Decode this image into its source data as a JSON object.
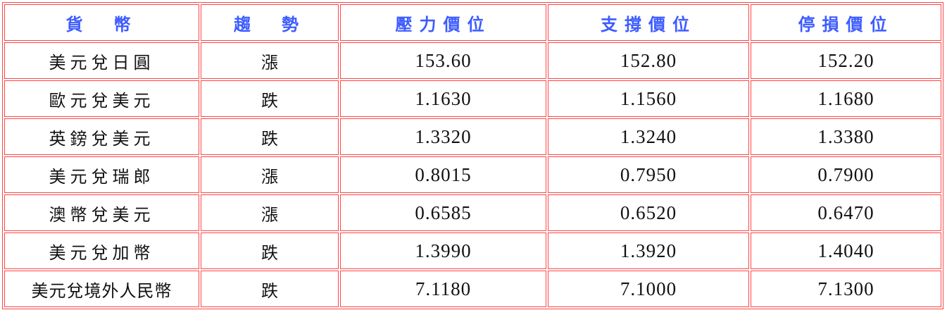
{
  "colors": {
    "border": "#ff4444",
    "header_text": "#3d5cff"
  },
  "headers": [
    "貨　幣",
    "趨　勢",
    "壓力價位",
    "支撐價位",
    "停損價位"
  ],
  "rows": [
    {
      "pair": "美元兌日圓",
      "trend": "漲",
      "resistance": "153.60",
      "support": "152.80",
      "stop": "152.20"
    },
    {
      "pair": "歐元兌美元",
      "trend": "跌",
      "resistance": "1.1630",
      "support": "1.1560",
      "stop": "1.1680"
    },
    {
      "pair": "英鎊兌美元",
      "trend": "跌",
      "resistance": "1.3320",
      "support": "1.3240",
      "stop": "1.3380"
    },
    {
      "pair": "美元兌瑞郎",
      "trend": "漲",
      "resistance": "0.8015",
      "support": "0.7950",
      "stop": "0.7900"
    },
    {
      "pair": "澳幣兌美元",
      "trend": "漲",
      "resistance": "0.6585",
      "support": "0.6520",
      "stop": "0.6470"
    },
    {
      "pair": "美元兌加幣",
      "trend": "跌",
      "resistance": "1.3990",
      "support": "1.3920",
      "stop": "1.4040"
    },
    {
      "pair": "美元兌境外人民幣",
      "trend": "跌",
      "resistance": "7.1180",
      "support": "7.1000",
      "stop": "7.1300"
    }
  ]
}
